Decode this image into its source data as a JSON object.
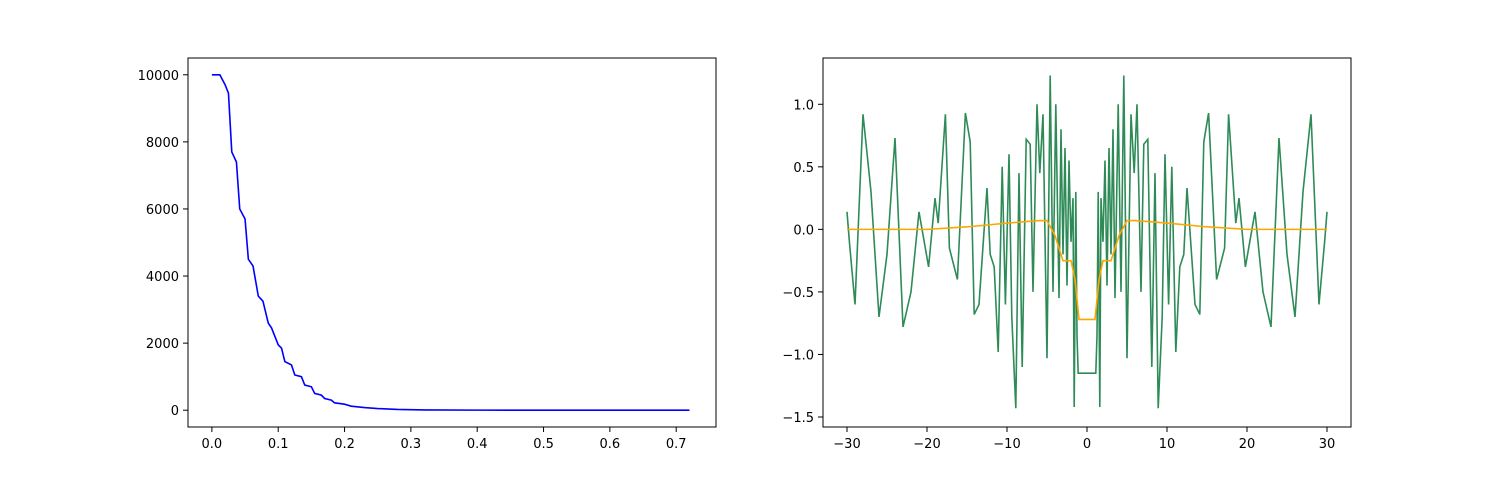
{
  "chart_data": [
    {
      "type": "line",
      "x": [
        0,
        0.012,
        0.02,
        0.025,
        0.03,
        0.037,
        0.042,
        0.05,
        0.055,
        0.062,
        0.07,
        0.077,
        0.085,
        0.09,
        0.1,
        0.105,
        0.11,
        0.12,
        0.125,
        0.135,
        0.14,
        0.15,
        0.155,
        0.165,
        0.17,
        0.18,
        0.185,
        0.2,
        0.21,
        0.23,
        0.25,
        0.28,
        0.32,
        0.4,
        0.5,
        0.72
      ],
      "series": [
        {
          "color": "#0000ff",
          "values": [
            10000,
            10000,
            9700,
            9450,
            7700,
            7400,
            6000,
            5700,
            4500,
            4300,
            3400,
            3250,
            2600,
            2450,
            1950,
            1850,
            1450,
            1350,
            1050,
            1000,
            750,
            700,
            500,
            450,
            350,
            300,
            220,
            180,
            120,
            80,
            50,
            25,
            10,
            3,
            0,
            0
          ]
        }
      ],
      "xlim": [
        -0.036,
        0.76
      ],
      "xticks": [
        {
          "value": 0,
          "label": "0.0"
        },
        0.1,
        0.2,
        0.3,
        0.4,
        0.5,
        0.6,
        0.7
      ],
      "ylim": [
        -500,
        10500
      ],
      "yticks": [
        0,
        2000,
        4000,
        6000,
        8000,
        10000
      ]
    },
    {
      "type": "line",
      "x": [
        -30,
        -29.7,
        -29,
        -28,
        -27,
        -26,
        -25,
        -24,
        -23,
        -22,
        -21,
        -19.8,
        -19,
        -18.6,
        -17.7,
        -17.2,
        -16.2,
        -15.2,
        -14.6,
        -14.1,
        -13.5,
        -12.5,
        -12.1,
        -11.6,
        -11.1,
        -10.6,
        -10.2,
        -9.75,
        -9.4,
        -8.9,
        -8.5,
        -8.1,
        -7.6,
        -7.1,
        -6.75,
        -6.25,
        -5.9,
        -5.5,
        -5,
        -4.6,
        -4.25,
        -3.9,
        -3.5,
        -3.25,
        -3,
        -2.75,
        -2.5,
        -2.25,
        -2,
        -1.75,
        -1.6,
        -1.4,
        -1.25,
        -1.1,
        1.1,
        1.25,
        1.4,
        1.6,
        1.75,
        2,
        2.25,
        2.5,
        2.75,
        3,
        3.25,
        3.5,
        3.9,
        4.25,
        4.6,
        5,
        5.5,
        5.9,
        6.25,
        6.75,
        7.1,
        7.6,
        8.1,
        8.5,
        8.9,
        9.4,
        9.75,
        10.2,
        10.6,
        11.1,
        11.6,
        12.1,
        12.5,
        13.5,
        14.1,
        14.6,
        15.2,
        16.2,
        17.2,
        17.7,
        18.6,
        19,
        19.8,
        21,
        22,
        23,
        24,
        25,
        26,
        27,
        28,
        29,
        29.7,
        30
      ],
      "series": [
        {
          "color": "#2e8b57",
          "values": [
            0.14,
            -0.1,
            -0.6,
            0.92,
            0.3,
            -0.7,
            -0.2,
            0.73,
            -0.78,
            -0.5,
            0.14,
            -0.3,
            0.25,
            0.05,
            0.92,
            -0.15,
            -0.4,
            0.93,
            0.7,
            -0.68,
            -0.6,
            0.33,
            -0.2,
            -0.3,
            -0.98,
            0.5,
            -0.6,
            0.6,
            -0.7,
            -1.43,
            0.45,
            -1.1,
            0.72,
            0.68,
            -0.5,
            1.0,
            0.45,
            0.92,
            -1.03,
            1.23,
            -0.5,
            1.0,
            -0.55,
            0.8,
            -0.2,
            0.65,
            -0.45,
            0.55,
            -0.1,
            0.25,
            -1.42,
            0.3,
            -0.85,
            -1.15,
            -1.15,
            -0.85,
            0.3,
            -1.42,
            0.25,
            -0.1,
            0.55,
            -0.45,
            0.65,
            -0.2,
            0.8,
            -0.55,
            1.0,
            -0.5,
            1.23,
            -1.03,
            0.92,
            0.45,
            1.0,
            -0.5,
            0.68,
            0.72,
            -1.1,
            0.45,
            -1.43,
            -0.7,
            0.6,
            -0.6,
            0.5,
            -0.98,
            -0.3,
            -0.2,
            0.33,
            -0.6,
            -0.68,
            0.7,
            0.93,
            -0.4,
            -0.15,
            0.92,
            0.05,
            0.25,
            -0.3,
            0.14,
            -0.5,
            -0.78,
            0.73,
            -0.2,
            -0.7,
            0.3,
            0.92,
            -0.6,
            -0.1,
            0.14
          ]
        }
      ],
      "x2": [
        -30,
        -25,
        -20,
        -15,
        -10,
        -6,
        -5,
        -4,
        -3,
        -2,
        -1.5,
        -1,
        1,
        1.5,
        2,
        3,
        4,
        5,
        6,
        10,
        15,
        20,
        25,
        30
      ],
      "series2": [
        {
          "color": "#ffa500",
          "values": [
            0,
            0,
            0,
            0.02,
            0.05,
            0.07,
            0.07,
            -0.05,
            -0.25,
            -0.25,
            -0.4,
            -0.72,
            -0.72,
            -0.4,
            -0.25,
            -0.25,
            -0.05,
            0.07,
            0.07,
            0.05,
            0.02,
            0,
            0,
            0
          ]
        }
      ],
      "xlim": [
        -33,
        33
      ],
      "xticks": [
        {
          "value": -30,
          "label": "−30"
        },
        {
          "value": -20,
          "label": "−20"
        },
        {
          "value": -10,
          "label": "−10"
        },
        0,
        10,
        20,
        30
      ],
      "ylim": [
        -1.58,
        1.37
      ],
      "yticks": [
        {
          "value": -1.5,
          "label": "−1.5"
        },
        {
          "value": -1,
          "label": "−1.0"
        },
        {
          "value": -0.5,
          "label": "−0.5"
        },
        {
          "value": 0,
          "label": "0.0"
        },
        0.5,
        {
          "value": 1,
          "label": "1.0"
        }
      ]
    }
  ]
}
